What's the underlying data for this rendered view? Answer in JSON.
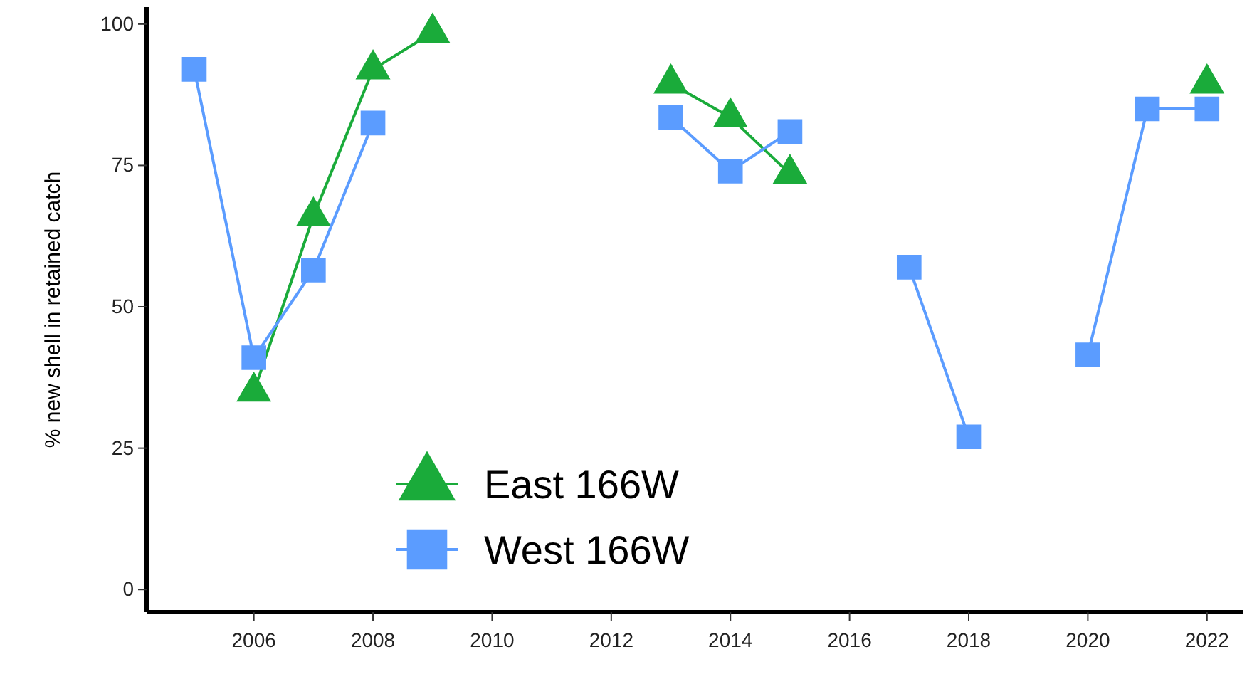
{
  "chart_data": {
    "type": "line",
    "ylabel": "% new shell in retained catch",
    "x": [
      2005,
      2006,
      2007,
      2008,
      2009,
      2010,
      2011,
      2012,
      2013,
      2014,
      2015,
      2016,
      2017,
      2018,
      2019,
      2020,
      2021,
      2022
    ],
    "series": [
      {
        "name": "East 166W",
        "color": "#1aab3a",
        "marker": "triangle",
        "values": [
          null,
          35,
          66,
          92,
          98.5,
          null,
          null,
          null,
          89.5,
          83.5,
          73.5,
          null,
          null,
          null,
          null,
          null,
          null,
          89.5
        ]
      },
      {
        "name": "West 166W",
        "color": "#5b9cff",
        "marker": "square",
        "values": [
          92,
          41,
          56.5,
          82.5,
          null,
          null,
          null,
          null,
          83.5,
          74,
          81,
          null,
          57,
          27,
          null,
          41.5,
          85,
          85
        ]
      }
    ],
    "xlim": [
      2004.2,
      2022.6
    ],
    "xticks": [
      2006,
      2008,
      2010,
      2012,
      2014,
      2016,
      2018,
      2020,
      2022
    ],
    "ylim": [
      -4,
      103
    ],
    "yticks": [
      0,
      25,
      50,
      75,
      100
    ],
    "grid": false,
    "legend": "bottom left",
    "line_style": "solid"
  }
}
